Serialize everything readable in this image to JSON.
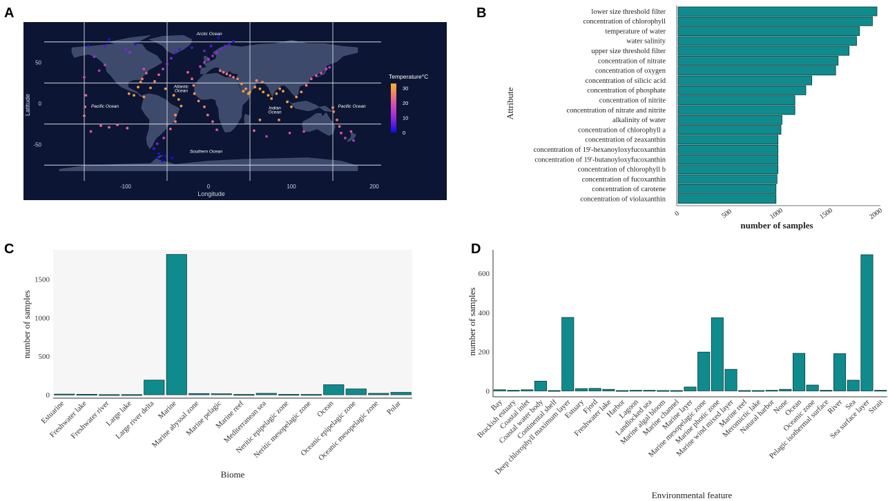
{
  "panel_letters": {
    "a": "A",
    "b": "B",
    "c": "C",
    "d": "D"
  },
  "chart_data": [
    {
      "panel": "A",
      "type": "scatter",
      "title": "",
      "xlabel": "Longitude",
      "ylabel": "Latitude",
      "xlim": [
        -195,
        205
      ],
      "ylim": [
        -90,
        90
      ],
      "x_ticks": [
        -100,
        0,
        100,
        200
      ],
      "y_ticks": [
        -50,
        0,
        50
      ],
      "legend": {
        "title": "Temperature°C",
        "ticks": [
          0,
          10,
          20,
          30
        ],
        "placement": "right"
      },
      "background": "#0c1533",
      "land_color": "#3e4a6b",
      "gridlines": {
        "x": [
          -150,
          -50,
          50,
          150
        ],
        "y": [
          75,
          25,
          -25,
          -75
        ]
      },
      "ocean_labels": [
        {
          "text": "Arctic Ocean",
          "lon": 1,
          "lat": 83
        },
        {
          "text": "Atlantic",
          "lon": -33,
          "lat": 19
        },
        {
          "text": "Ocean",
          "lon": -33,
          "lat": 14
        },
        {
          "text": "Pacific Ocean",
          "lon": -125,
          "lat": -5
        },
        {
          "text": "Indian",
          "lon": 80,
          "lat": -7
        },
        {
          "text": "Ocean",
          "lon": 80,
          "lat": -12
        },
        {
          "text": "Pacific Ocean",
          "lon": 173,
          "lat": -5
        },
        {
          "text": "Southern Ocean",
          "lon": -3,
          "lat": -60
        }
      ],
      "points": [
        [
          -150,
          32,
          18
        ],
        [
          -148,
          10,
          22
        ],
        [
          -149,
          -4,
          24
        ],
        [
          -150,
          -15,
          25
        ],
        [
          -142,
          -34,
          20
        ],
        [
          -130,
          -27,
          22
        ],
        [
          -120,
          -29,
          23
        ],
        [
          -110,
          -26,
          24
        ],
        [
          -98,
          -30,
          23
        ],
        [
          -125,
          47,
          16
        ],
        [
          -132,
          40,
          14
        ],
        [
          -138,
          57,
          12
        ],
        [
          -125,
          70,
          5
        ],
        [
          -145,
          70,
          3
        ],
        [
          -120,
          78,
          1
        ],
        [
          -100,
          66,
          8
        ],
        [
          -95,
          62,
          10
        ],
        [
          -88,
          72,
          2
        ],
        [
          -78,
          42,
          18
        ],
        [
          -75,
          37,
          22
        ],
        [
          -80,
          30,
          26
        ],
        [
          -82,
          26,
          28
        ],
        [
          -85,
          20,
          29
        ],
        [
          -90,
          10,
          30
        ],
        [
          -96,
          12,
          28
        ],
        [
          -78,
          8,
          29
        ],
        [
          -70,
          19,
          30
        ],
        [
          -65,
          27,
          27
        ],
        [
          -60,
          35,
          22
        ],
        [
          -55,
          42,
          16
        ],
        [
          -50,
          48,
          12
        ],
        [
          -45,
          55,
          8
        ],
        [
          -40,
          62,
          5
        ],
        [
          -35,
          66,
          3
        ],
        [
          -52,
          18,
          29
        ],
        [
          -42,
          10,
          29
        ],
        [
          -36,
          5,
          29
        ],
        [
          -33,
          -3,
          29
        ],
        [
          -40,
          -14,
          28
        ],
        [
          -40,
          -22,
          26
        ],
        [
          -46,
          -31,
          22
        ],
        [
          -54,
          -42,
          16
        ],
        [
          -62,
          -49,
          8
        ],
        [
          -66,
          -55,
          4
        ],
        [
          -60,
          -61,
          1
        ],
        [
          -52,
          -64,
          0
        ],
        [
          -44,
          -66,
          0
        ],
        [
          -56,
          -70,
          0
        ],
        [
          -62,
          -66,
          0
        ],
        [
          -25,
          38,
          22
        ],
        [
          -20,
          30,
          24
        ],
        [
          -18,
          22,
          26
        ],
        [
          -17,
          12,
          28
        ],
        [
          -12,
          3,
          28
        ],
        [
          -5,
          -4,
          27
        ],
        [
          -1,
          -14,
          24
        ],
        [
          5,
          -22,
          22
        ],
        [
          10,
          -32,
          20
        ],
        [
          -10,
          45,
          17
        ],
        [
          -5,
          50,
          15
        ],
        [
          0,
          54,
          13
        ],
        [
          5,
          58,
          11
        ],
        [
          10,
          62,
          10
        ],
        [
          15,
          66,
          8
        ],
        [
          20,
          70,
          6
        ],
        [
          25,
          72,
          4
        ],
        [
          30,
          76,
          2
        ],
        [
          12,
          80,
          1
        ],
        [
          -20,
          68,
          4
        ],
        [
          -5,
          64,
          6
        ],
        [
          3,
          70,
          5
        ],
        [
          14,
          40,
          24
        ],
        [
          18,
          38,
          25
        ],
        [
          22,
          36,
          24
        ],
        [
          26,
          34,
          23
        ],
        [
          30,
          32,
          24
        ],
        [
          35,
          30,
          26
        ],
        [
          40,
          24,
          28
        ],
        [
          45,
          18,
          29
        ],
        [
          50,
          14,
          30
        ],
        [
          56,
          20,
          28
        ],
        [
          62,
          18,
          29
        ],
        [
          66,
          14,
          30
        ],
        [
          72,
          10,
          30
        ],
        [
          76,
          6,
          30
        ],
        [
          82,
          12,
          29
        ],
        [
          86,
          18,
          28
        ],
        [
          90,
          15,
          29
        ],
        [
          95,
          2,
          30
        ],
        [
          100,
          -4,
          30
        ],
        [
          106,
          8,
          29
        ],
        [
          112,
          14,
          29
        ],
        [
          118,
          22,
          26
        ],
        [
          124,
          30,
          23
        ],
        [
          130,
          34,
          21
        ],
        [
          136,
          37,
          20
        ],
        [
          142,
          42,
          17
        ],
        [
          146,
          44,
          14
        ],
        [
          151,
          -10,
          27
        ],
        [
          155,
          -20,
          25
        ],
        [
          158,
          -28,
          23
        ],
        [
          160,
          -36,
          20
        ],
        [
          165,
          -42,
          16
        ],
        [
          175,
          -45,
          14
        ],
        [
          172,
          -34,
          19
        ],
        [
          150,
          -5,
          28
        ],
        [
          62,
          -20,
          28
        ],
        [
          55,
          -33,
          22
        ],
        [
          70,
          -40,
          15
        ],
        [
          85,
          -20,
          27
        ],
        [
          98,
          -36,
          18
        ],
        [
          115,
          -34,
          18
        ],
        [
          58,
          28,
          27
        ],
        [
          65,
          26,
          28
        ],
        [
          42,
          15,
          30
        ],
        [
          48,
          12,
          30
        ]
      ]
    },
    {
      "panel": "B",
      "type": "bar",
      "orientation": "horizontal",
      "xlabel": "number of samples",
      "ylabel": "Attribute",
      "xlim": [
        0,
        2050
      ],
      "x_ticks": [
        0,
        500,
        1000,
        1500,
        2000
      ],
      "categories": [
        "lower size threshold filter",
        "concentration of chlorophyll",
        "temperature of water",
        "water salinity",
        "upper size threshold filter",
        "concentration of nitrate",
        "concentration of oxygen",
        "concentration of silicic acid",
        "concentration of phosphate",
        "concentration of nitrite",
        "concentration of nitrate and nitrite",
        "alkalinity of water",
        "concentration of chlorophyll a",
        "concentration of zeaxanthin",
        "concentration of 19'-hexanoyloxyfucoxanthin",
        "concentration of 19'-butanoyloxyfucoxanthin",
        "concentration of chlorophyll b",
        "concentration of fucoxanthin",
        "concentration of carotene",
        "concentration of violaxanthin"
      ],
      "values": [
        2000,
        1955,
        1825,
        1795,
        1720,
        1610,
        1585,
        1345,
        1285,
        1175,
        1175,
        1045,
        1035,
        1005,
        1005,
        1005,
        1005,
        995,
        985,
        985
      ]
    },
    {
      "panel": "C",
      "type": "bar",
      "xlabel": "Biome",
      "ylabel": "number of samples",
      "ylim": [
        -45,
        1880
      ],
      "y_ticks": [
        0,
        500,
        1000,
        1500
      ],
      "categories": [
        "Estuarine",
        "Freshwater lake",
        "Freshwater river",
        "Large lake",
        "Large river delta",
        "Marine",
        "Marine abyssal zone",
        "Marine pelagic",
        "Marine reef",
        "Mediterranean sea",
        "Neritic epipelagic zone",
        "Neritic mesopelagic zone",
        "Ocean",
        "Oceanic epipelagic zone",
        "Oceanic mesopelagic zone",
        "Polar"
      ],
      "values": [
        8,
        5,
        2,
        2,
        190,
        1820,
        15,
        12,
        3,
        18,
        4,
        3,
        130,
        75,
        18,
        30
      ]
    },
    {
      "panel": "D",
      "type": "bar",
      "xlabel": "Environmental feature",
      "ylabel": "number of samples",
      "ylim": [
        -30,
        720
      ],
      "y_ticks": [
        0,
        200,
        400,
        600
      ],
      "categories": [
        "Bay",
        "Brackish estuary",
        "Coastal inlet",
        "Coastal water body",
        "Continental shelf",
        "Deep chlorophyll maximum layer",
        "Estuary",
        "Fjord",
        "Freshwater lake",
        "Harbor",
        "Lagoon",
        "Landlocked sea",
        "Marine algal bloom",
        "Marine channel",
        "Marine layer",
        "Marine mesopelagic zone",
        "Marine photic zone",
        "Marine wind mixed layer",
        "Marine reef",
        "Meromictic lake",
        "Natural harbor",
        "None",
        "Ocean",
        "Oceanic zone",
        "Pelagic isothermal surface",
        "River",
        "Sea",
        "Sea surface layer",
        "Strait"
      ],
      "values": [
        6,
        3,
        6,
        50,
        2,
        375,
        12,
        13,
        8,
        2,
        3,
        3,
        2,
        2,
        20,
        198,
        373,
        110,
        2,
        2,
        3,
        8,
        192,
        30,
        3,
        190,
        55,
        695,
        3
      ]
    }
  ]
}
